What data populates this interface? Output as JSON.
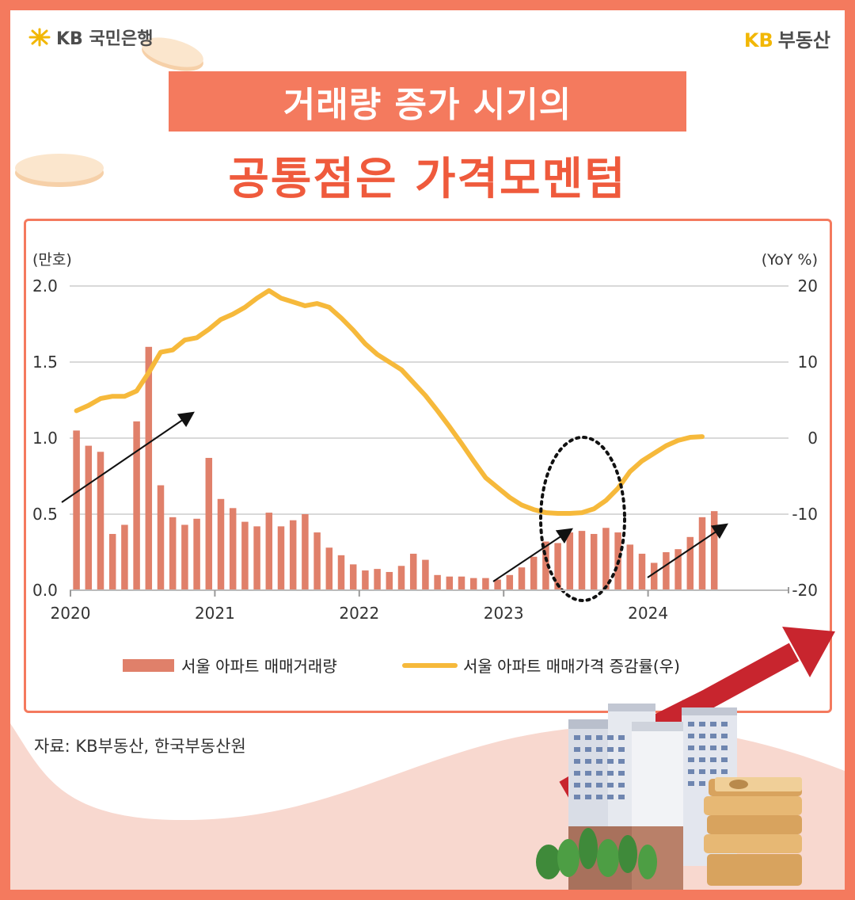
{
  "branding": {
    "bank_logo_text": "KB 국민은행",
    "realty_kb": "KB",
    "realty_name": "부동산"
  },
  "title": {
    "line1": "거래량 증가 시기의",
    "line2": "공통점은 가격모멘텀"
  },
  "source": "자료: KB부동산, 한국부동산원",
  "colors": {
    "frame": "#f47a5e",
    "bar": "#e0806a",
    "line": "#f6b93b",
    "title_red": "#ef5a3c"
  },
  "chart_data": {
    "type": "bar",
    "left_axis_unit": "(만호)",
    "right_axis_unit": "(YoY %)",
    "ylim_left": [
      0,
      2.0
    ],
    "ylim_right": [
      -20,
      20
    ],
    "yticks_left": [
      "0.0",
      "0.5",
      "1.0",
      "1.5",
      "2.0"
    ],
    "yticks_right": [
      "-20",
      "-10",
      "0",
      "10",
      "20"
    ],
    "x_tick_labels": [
      "2020",
      "2021",
      "2022",
      "2023",
      "2024"
    ],
    "grid": true,
    "legend_position": "bottom",
    "series": [
      {
        "name": "서울 아파트 매매거래량",
        "type": "bar",
        "axis": "left",
        "start": "2020-01",
        "values": [
          1.05,
          0.95,
          0.91,
          0.37,
          0.43,
          1.11,
          1.6,
          0.69,
          0.48,
          0.43,
          0.47,
          0.87,
          0.6,
          0.54,
          0.45,
          0.42,
          0.51,
          0.42,
          0.46,
          0.5,
          0.38,
          0.28,
          0.23,
          0.17,
          0.13,
          0.14,
          0.12,
          0.16,
          0.24,
          0.2,
          0.1,
          0.09,
          0.09,
          0.08,
          0.08,
          0.07,
          0.1,
          0.15,
          0.22,
          0.32,
          0.31,
          0.38,
          0.39,
          0.37,
          0.41,
          0.38,
          0.3,
          0.24,
          0.18,
          0.25,
          0.27,
          0.35,
          0.48,
          0.52
        ]
      },
      {
        "name": "서울 아파트 매매가격 증감률(우)",
        "type": "line",
        "axis": "right",
        "start": "2020-01",
        "values": [
          3.6,
          4.3,
          5.2,
          5.5,
          5.5,
          6.2,
          8.6,
          11.3,
          11.6,
          12.9,
          13.2,
          14.3,
          15.6,
          16.3,
          17.2,
          18.4,
          19.4,
          18.4,
          17.9,
          17.4,
          17.7,
          17.2,
          15.8,
          14.2,
          12.4,
          11.0,
          10.0,
          9.0,
          7.3,
          5.6,
          3.6,
          1.5,
          -0.7,
          -3.0,
          -5.2,
          -6.5,
          -7.8,
          -8.8,
          -9.4,
          -9.8,
          -9.9,
          -9.9,
          -9.8,
          -9.3,
          -8.2,
          -6.6,
          -4.4,
          -3.0,
          -2.0,
          -1.0,
          -0.3,
          0.1,
          0.2
        ]
      }
    ],
    "annotations": [
      "trend-arrow-2020",
      "trend-arrow-2023",
      "trend-arrow-2024",
      "dotted-ellipse-2023"
    ]
  }
}
